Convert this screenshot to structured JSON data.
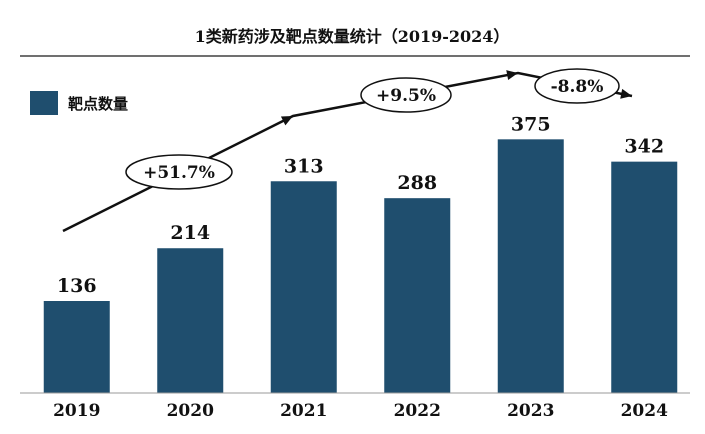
{
  "chart_data": {
    "type": "bar",
    "title": "1类新药涉及靶点数量统计（2019-2024）",
    "categories": [
      "2019",
      "2020",
      "2021",
      "2022",
      "2023",
      "2024"
    ],
    "series": [
      {
        "name": "靶点数量",
        "values": [
          136,
          214,
          313,
          288,
          375,
          342
        ]
      }
    ],
    "ylim": [
      0,
      420
    ],
    "grid": false,
    "legend": "top-left",
    "bar_color": "#1f4e6e",
    "annotations": [
      {
        "text": "+51.7%",
        "from": "2019",
        "to": "2021"
      },
      {
        "text": "+9.5%",
        "from": "2021",
        "to": "2023"
      },
      {
        "text": "-8.8%",
        "from": "2023",
        "to": "2024"
      }
    ]
  }
}
